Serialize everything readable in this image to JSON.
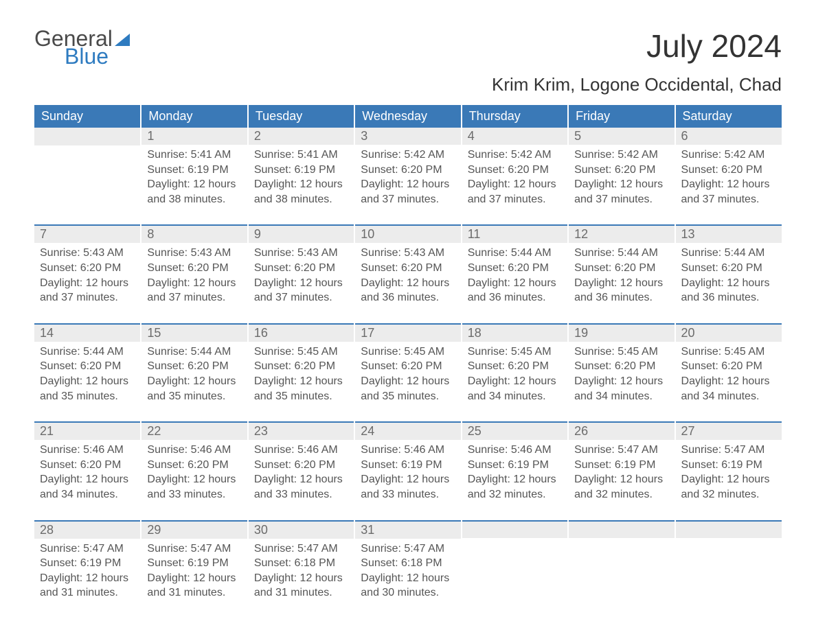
{
  "brand": {
    "line1": "General",
    "line2": "Blue",
    "accent_color": "#2e7bc0",
    "text_color": "#4a4a4a"
  },
  "title": "July 2024",
  "location": "Krim Krim, Logone Occidental, Chad",
  "colors": {
    "header_bg": "#3a79b7",
    "header_text": "#ffffff",
    "daynum_bg": "#ececec",
    "daynum_border": "#3a79b7",
    "body_text": "#555555",
    "page_bg": "#ffffff"
  },
  "fonts": {
    "title_size_pt": 34,
    "location_size_pt": 20,
    "header_size_pt": 14,
    "body_size_pt": 12
  },
  "days_of_week": [
    "Sunday",
    "Monday",
    "Tuesday",
    "Wednesday",
    "Thursday",
    "Friday",
    "Saturday"
  ],
  "weeks": [
    [
      null,
      {
        "n": "1",
        "sunrise": "Sunrise: 5:41 AM",
        "sunset": "Sunset: 6:19 PM",
        "daylight": "Daylight: 12 hours and 38 minutes."
      },
      {
        "n": "2",
        "sunrise": "Sunrise: 5:41 AM",
        "sunset": "Sunset: 6:19 PM",
        "daylight": "Daylight: 12 hours and 38 minutes."
      },
      {
        "n": "3",
        "sunrise": "Sunrise: 5:42 AM",
        "sunset": "Sunset: 6:20 PM",
        "daylight": "Daylight: 12 hours and 37 minutes."
      },
      {
        "n": "4",
        "sunrise": "Sunrise: 5:42 AM",
        "sunset": "Sunset: 6:20 PM",
        "daylight": "Daylight: 12 hours and 37 minutes."
      },
      {
        "n": "5",
        "sunrise": "Sunrise: 5:42 AM",
        "sunset": "Sunset: 6:20 PM",
        "daylight": "Daylight: 12 hours and 37 minutes."
      },
      {
        "n": "6",
        "sunrise": "Sunrise: 5:42 AM",
        "sunset": "Sunset: 6:20 PM",
        "daylight": "Daylight: 12 hours and 37 minutes."
      }
    ],
    [
      {
        "n": "7",
        "sunrise": "Sunrise: 5:43 AM",
        "sunset": "Sunset: 6:20 PM",
        "daylight": "Daylight: 12 hours and 37 minutes."
      },
      {
        "n": "8",
        "sunrise": "Sunrise: 5:43 AM",
        "sunset": "Sunset: 6:20 PM",
        "daylight": "Daylight: 12 hours and 37 minutes."
      },
      {
        "n": "9",
        "sunrise": "Sunrise: 5:43 AM",
        "sunset": "Sunset: 6:20 PM",
        "daylight": "Daylight: 12 hours and 37 minutes."
      },
      {
        "n": "10",
        "sunrise": "Sunrise: 5:43 AM",
        "sunset": "Sunset: 6:20 PM",
        "daylight": "Daylight: 12 hours and 36 minutes."
      },
      {
        "n": "11",
        "sunrise": "Sunrise: 5:44 AM",
        "sunset": "Sunset: 6:20 PM",
        "daylight": "Daylight: 12 hours and 36 minutes."
      },
      {
        "n": "12",
        "sunrise": "Sunrise: 5:44 AM",
        "sunset": "Sunset: 6:20 PM",
        "daylight": "Daylight: 12 hours and 36 minutes."
      },
      {
        "n": "13",
        "sunrise": "Sunrise: 5:44 AM",
        "sunset": "Sunset: 6:20 PM",
        "daylight": "Daylight: 12 hours and 36 minutes."
      }
    ],
    [
      {
        "n": "14",
        "sunrise": "Sunrise: 5:44 AM",
        "sunset": "Sunset: 6:20 PM",
        "daylight": "Daylight: 12 hours and 35 minutes."
      },
      {
        "n": "15",
        "sunrise": "Sunrise: 5:44 AM",
        "sunset": "Sunset: 6:20 PM",
        "daylight": "Daylight: 12 hours and 35 minutes."
      },
      {
        "n": "16",
        "sunrise": "Sunrise: 5:45 AM",
        "sunset": "Sunset: 6:20 PM",
        "daylight": "Daylight: 12 hours and 35 minutes."
      },
      {
        "n": "17",
        "sunrise": "Sunrise: 5:45 AM",
        "sunset": "Sunset: 6:20 PM",
        "daylight": "Daylight: 12 hours and 35 minutes."
      },
      {
        "n": "18",
        "sunrise": "Sunrise: 5:45 AM",
        "sunset": "Sunset: 6:20 PM",
        "daylight": "Daylight: 12 hours and 34 minutes."
      },
      {
        "n": "19",
        "sunrise": "Sunrise: 5:45 AM",
        "sunset": "Sunset: 6:20 PM",
        "daylight": "Daylight: 12 hours and 34 minutes."
      },
      {
        "n": "20",
        "sunrise": "Sunrise: 5:45 AM",
        "sunset": "Sunset: 6:20 PM",
        "daylight": "Daylight: 12 hours and 34 minutes."
      }
    ],
    [
      {
        "n": "21",
        "sunrise": "Sunrise: 5:46 AM",
        "sunset": "Sunset: 6:20 PM",
        "daylight": "Daylight: 12 hours and 34 minutes."
      },
      {
        "n": "22",
        "sunrise": "Sunrise: 5:46 AM",
        "sunset": "Sunset: 6:20 PM",
        "daylight": "Daylight: 12 hours and 33 minutes."
      },
      {
        "n": "23",
        "sunrise": "Sunrise: 5:46 AM",
        "sunset": "Sunset: 6:20 PM",
        "daylight": "Daylight: 12 hours and 33 minutes."
      },
      {
        "n": "24",
        "sunrise": "Sunrise: 5:46 AM",
        "sunset": "Sunset: 6:19 PM",
        "daylight": "Daylight: 12 hours and 33 minutes."
      },
      {
        "n": "25",
        "sunrise": "Sunrise: 5:46 AM",
        "sunset": "Sunset: 6:19 PM",
        "daylight": "Daylight: 12 hours and 32 minutes."
      },
      {
        "n": "26",
        "sunrise": "Sunrise: 5:47 AM",
        "sunset": "Sunset: 6:19 PM",
        "daylight": "Daylight: 12 hours and 32 minutes."
      },
      {
        "n": "27",
        "sunrise": "Sunrise: 5:47 AM",
        "sunset": "Sunset: 6:19 PM",
        "daylight": "Daylight: 12 hours and 32 minutes."
      }
    ],
    [
      {
        "n": "28",
        "sunrise": "Sunrise: 5:47 AM",
        "sunset": "Sunset: 6:19 PM",
        "daylight": "Daylight: 12 hours and 31 minutes."
      },
      {
        "n": "29",
        "sunrise": "Sunrise: 5:47 AM",
        "sunset": "Sunset: 6:19 PM",
        "daylight": "Daylight: 12 hours and 31 minutes."
      },
      {
        "n": "30",
        "sunrise": "Sunrise: 5:47 AM",
        "sunset": "Sunset: 6:18 PM",
        "daylight": "Daylight: 12 hours and 31 minutes."
      },
      {
        "n": "31",
        "sunrise": "Sunrise: 5:47 AM",
        "sunset": "Sunset: 6:18 PM",
        "daylight": "Daylight: 12 hours and 30 minutes."
      },
      null,
      null,
      null
    ]
  ]
}
